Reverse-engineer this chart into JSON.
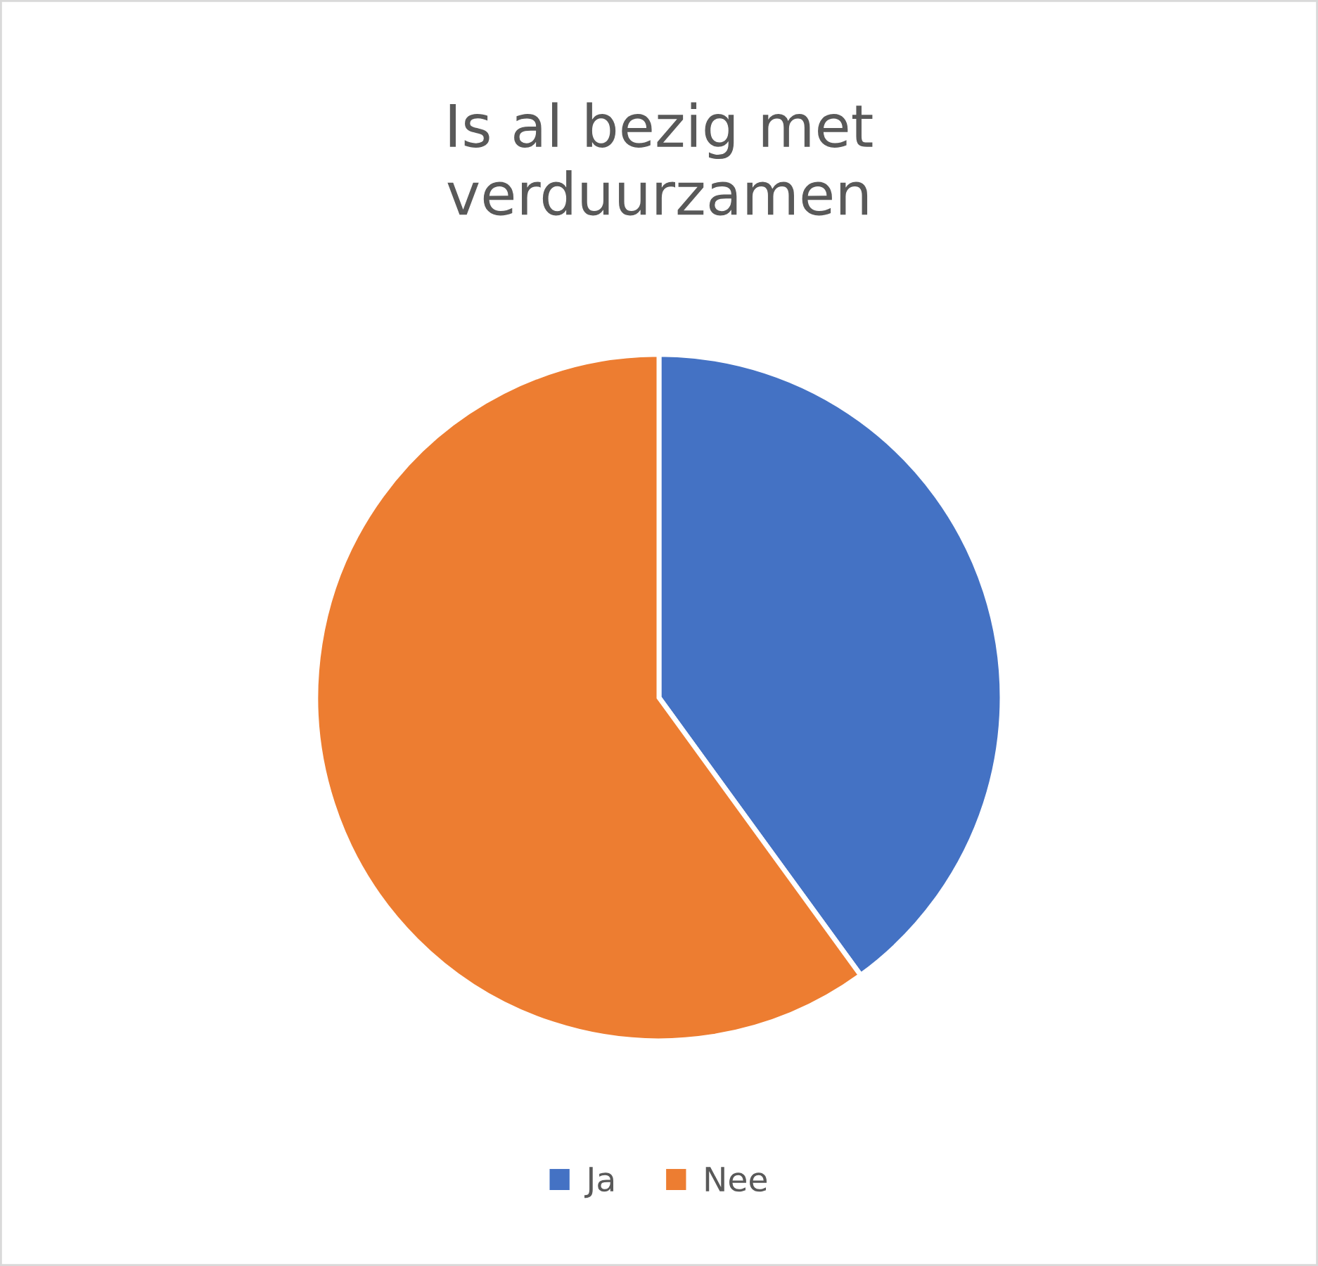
{
  "chart_data": {
    "type": "pie",
    "title": "Is al bezig met\nverduurzamen",
    "categories": [
      "Ja",
      "Nee"
    ],
    "values": [
      40,
      60
    ],
    "colors": [
      "#4472c4",
      "#ed7d31"
    ],
    "legend": "bottom"
  }
}
